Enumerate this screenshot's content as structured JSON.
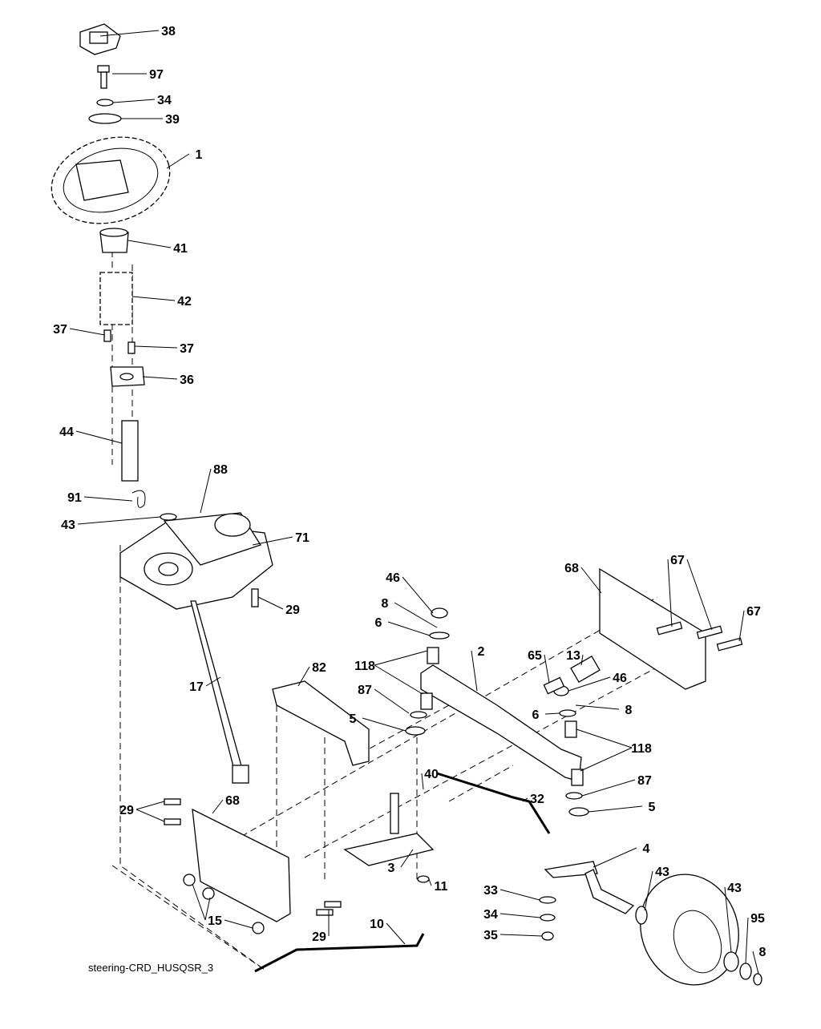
{
  "diagram": {
    "caption": "steering-CRD_HUSQSR_3",
    "callouts": [
      "38",
      "97",
      "34",
      "39",
      "1",
      "41",
      "42",
      "37",
      "37",
      "36",
      "44",
      "88",
      "91",
      "43",
      "71",
      "29",
      "46",
      "8",
      "6",
      "118",
      "82",
      "17",
      "87",
      "5",
      "2",
      "65",
      "13",
      "46",
      "6",
      "8",
      "118",
      "87",
      "5",
      "68",
      "67",
      "67",
      "68",
      "29",
      "40",
      "32",
      "3",
      "4",
      "11",
      "43",
      "33",
      "34",
      "35",
      "15",
      "29",
      "10",
      "43",
      "95",
      "8"
    ]
  }
}
